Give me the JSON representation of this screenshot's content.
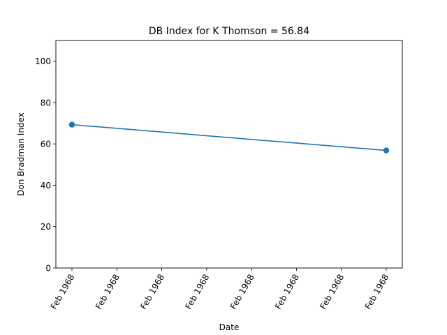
{
  "chart_data": {
    "type": "line",
    "title": "DB Index for K Thomson = 56.84",
    "xlabel": "Date",
    "ylabel": "Don Bradman Index",
    "ylim": [
      0,
      110
    ],
    "yticks": [
      0,
      20,
      40,
      60,
      80,
      100
    ],
    "xtick_labels": [
      "Feb 1968",
      "Feb 1968",
      "Feb 1968",
      "Feb 1968",
      "Feb 1968",
      "Feb 1968",
      "Feb 1968",
      "Feb 1968"
    ],
    "grid": false,
    "legend": "none",
    "series": [
      {
        "x": [
          "Feb 1968",
          "Feb 1968"
        ],
        "values": [
          69.3,
          56.84
        ],
        "color": "#1f77b4"
      }
    ]
  }
}
